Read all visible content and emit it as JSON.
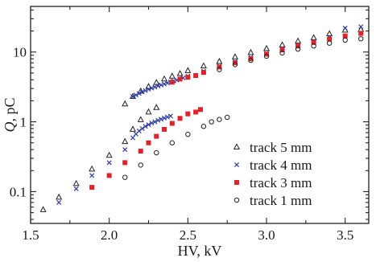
{
  "chart_data": {
    "type": "scatter",
    "xlabel": "HV, kV",
    "ylabel_symbol": "Q",
    "ylabel_unit": ", pC",
    "xscale": "linear",
    "yscale": "log",
    "xlim": [
      1.5,
      3.65
    ],
    "ylim": [
      0.035,
      45
    ],
    "grid": false,
    "legend_position": "lower-right",
    "x_ticks": [
      {
        "value": 1.5,
        "label": "1.5"
      },
      {
        "value": 2.0,
        "label": "2.0"
      },
      {
        "value": 2.5,
        "label": "2.5"
      },
      {
        "value": 3.0,
        "label": "3.0"
      },
      {
        "value": 3.5,
        "label": "3.5"
      }
    ],
    "y_ticks": [
      {
        "value": 0.1,
        "label": "0.1"
      },
      {
        "value": 1,
        "label": "1"
      },
      {
        "value": 10,
        "label": "10"
      }
    ],
    "series": [
      {
        "name": "track 5 mm",
        "marker": "triangle-open",
        "color": "#222222",
        "points": [
          [
            1.58,
            0.055
          ],
          [
            1.68,
            0.083
          ],
          [
            1.79,
            0.13
          ],
          [
            1.89,
            0.21
          ],
          [
            2.0,
            0.33
          ],
          [
            2.1,
            0.52
          ],
          [
            2.15,
            0.78
          ],
          [
            2.2,
            1.07
          ],
          [
            2.25,
            1.38
          ],
          [
            2.3,
            1.6
          ],
          [
            2.1,
            1.8
          ],
          [
            2.15,
            2.3
          ],
          [
            2.2,
            2.75
          ],
          [
            2.25,
            3.2
          ],
          [
            2.3,
            3.65
          ],
          [
            2.35,
            4.1
          ],
          [
            2.4,
            4.5
          ],
          [
            2.45,
            4.9
          ],
          [
            2.5,
            5.4
          ],
          [
            2.6,
            6.3
          ],
          [
            2.7,
            7.3
          ],
          [
            2.8,
            8.5
          ],
          [
            2.9,
            9.8
          ],
          [
            3.0,
            11.2
          ],
          [
            3.1,
            12.6
          ],
          [
            3.2,
            14.3
          ],
          [
            3.3,
            16.0
          ],
          [
            3.4,
            18.2
          ],
          [
            3.5,
            20.5
          ],
          [
            3.6,
            21.0
          ]
        ]
      },
      {
        "name": "track 4 mm",
        "marker": "x",
        "color": "#2a3aa8",
        "points": [
          [
            1.68,
            0.07
          ],
          [
            1.79,
            0.11
          ],
          [
            1.89,
            0.17
          ],
          [
            2.0,
            0.26
          ],
          [
            2.1,
            0.4
          ],
          [
            2.15,
            0.59
          ],
          [
            2.17,
            0.67
          ],
          [
            2.19,
            0.74
          ],
          [
            2.21,
            0.8
          ],
          [
            2.23,
            0.86
          ],
          [
            2.25,
            0.91
          ],
          [
            2.27,
            0.96
          ],
          [
            2.29,
            1.0
          ],
          [
            2.31,
            1.05
          ],
          [
            2.33,
            1.09
          ],
          [
            2.35,
            1.13
          ],
          [
            2.37,
            1.17
          ],
          [
            2.39,
            1.21
          ],
          [
            2.15,
            2.3
          ],
          [
            2.17,
            2.42
          ],
          [
            2.19,
            2.55
          ],
          [
            2.21,
            2.68
          ],
          [
            2.23,
            2.8
          ],
          [
            2.25,
            2.92
          ],
          [
            2.27,
            3.04
          ],
          [
            2.29,
            3.15
          ],
          [
            2.31,
            3.26
          ],
          [
            2.33,
            3.37
          ],
          [
            2.35,
            3.48
          ],
          [
            2.37,
            3.6
          ],
          [
            2.39,
            3.72
          ],
          [
            2.41,
            3.84
          ],
          [
            2.43,
            3.96
          ],
          [
            2.45,
            4.1
          ],
          [
            2.47,
            4.25
          ],
          [
            2.5,
            4.5
          ],
          [
            2.6,
            5.3
          ],
          [
            2.7,
            6.3
          ],
          [
            2.8,
            7.3
          ],
          [
            2.9,
            8.4
          ],
          [
            3.0,
            9.6
          ],
          [
            3.1,
            11.0
          ],
          [
            3.2,
            12.5
          ],
          [
            3.3,
            14.2
          ],
          [
            3.4,
            16.2
          ],
          [
            3.5,
            22.0
          ],
          [
            3.6,
            23.0
          ]
        ]
      },
      {
        "name": "track 3 mm",
        "marker": "square-filled",
        "color": "#e0222a",
        "points": [
          [
            1.89,
            0.115
          ],
          [
            2.0,
            0.17
          ],
          [
            2.1,
            0.26
          ],
          [
            2.2,
            0.38
          ],
          [
            2.25,
            0.5
          ],
          [
            2.3,
            0.62
          ],
          [
            2.35,
            0.78
          ],
          [
            2.4,
            0.95
          ],
          [
            2.45,
            1.12
          ],
          [
            2.5,
            1.3
          ],
          [
            2.55,
            1.38
          ],
          [
            2.58,
            1.5
          ],
          [
            2.4,
            3.7
          ],
          [
            2.45,
            4.1
          ],
          [
            2.5,
            4.35
          ],
          [
            2.55,
            4.6
          ],
          [
            2.6,
            5.1
          ],
          [
            2.7,
            6.1
          ],
          [
            2.8,
            7.0
          ],
          [
            2.9,
            8.0
          ],
          [
            3.0,
            9.3
          ],
          [
            3.1,
            10.7
          ],
          [
            3.2,
            12.2
          ],
          [
            3.3,
            13.7
          ],
          [
            3.4,
            15.3
          ],
          [
            3.5,
            17.0
          ],
          [
            3.6,
            18.5
          ]
        ]
      },
      {
        "name": "track 1 mm",
        "marker": "circle-open",
        "color": "#222222",
        "points": [
          [
            2.1,
            0.16
          ],
          [
            2.2,
            0.24
          ],
          [
            2.3,
            0.36
          ],
          [
            2.4,
            0.5
          ],
          [
            2.5,
            0.66
          ],
          [
            2.6,
            0.86
          ],
          [
            2.65,
            1.0
          ],
          [
            2.7,
            1.08
          ],
          [
            2.75,
            1.16
          ],
          [
            2.7,
            5.6
          ],
          [
            2.8,
            6.6
          ],
          [
            2.9,
            7.6
          ],
          [
            3.0,
            8.7
          ],
          [
            3.1,
            9.7
          ],
          [
            3.2,
            11.0
          ],
          [
            3.3,
            12.2
          ],
          [
            3.4,
            13.4
          ],
          [
            3.5,
            14.8
          ],
          [
            3.6,
            15.5
          ]
        ]
      }
    ]
  }
}
